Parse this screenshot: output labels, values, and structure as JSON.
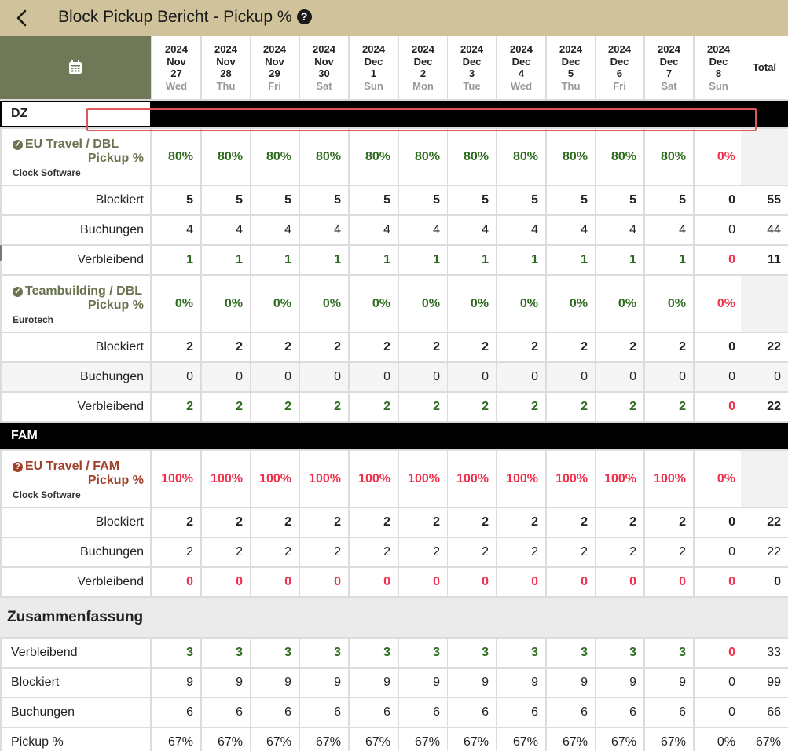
{
  "header": {
    "title": "Block Pickup Bericht - Pickup %",
    "back_icon": "chevron-left-icon",
    "help_icon": "help-circle-icon"
  },
  "columns": [
    {
      "year": "2024",
      "month": "Nov",
      "day": "27",
      "weekday": "Wed"
    },
    {
      "year": "2024",
      "month": "Nov",
      "day": "28",
      "weekday": "Thu"
    },
    {
      "year": "2024",
      "month": "Nov",
      "day": "29",
      "weekday": "Fri"
    },
    {
      "year": "2024",
      "month": "Nov",
      "day": "30",
      "weekday": "Sat"
    },
    {
      "year": "2024",
      "month": "Dec",
      "day": "1",
      "weekday": "Sun"
    },
    {
      "year": "2024",
      "month": "Dec",
      "day": "2",
      "weekday": "Mon"
    },
    {
      "year": "2024",
      "month": "Dec",
      "day": "3",
      "weekday": "Tue"
    },
    {
      "year": "2024",
      "month": "Dec",
      "day": "4",
      "weekday": "Wed"
    },
    {
      "year": "2024",
      "month": "Dec",
      "day": "5",
      "weekday": "Thu"
    },
    {
      "year": "2024",
      "month": "Dec",
      "day": "6",
      "weekday": "Fri"
    },
    {
      "year": "2024",
      "month": "Dec",
      "day": "7",
      "weekday": "Sat"
    },
    {
      "year": "2024",
      "month": "Dec",
      "day": "8",
      "weekday": "Sun"
    }
  ],
  "total_label": "Total",
  "calendar_icon": "calendar-icon",
  "sections": [
    {
      "name": "DZ",
      "groups": [
        {
          "name": "EU Travel / DBL",
          "company": "Clock Software",
          "status": "confirmed",
          "color": "#6b7450",
          "pickup_label": "Pickup %",
          "pickup": [
            "80%",
            "80%",
            "80%",
            "80%",
            "80%",
            "80%",
            "80%",
            "80%",
            "80%",
            "80%",
            "80%",
            "0%"
          ],
          "rows": [
            {
              "label": "Blockiert",
              "values": [
                "5",
                "5",
                "5",
                "5",
                "5",
                "5",
                "5",
                "5",
                "5",
                "5",
                "5",
                "0"
              ],
              "total": "55"
            },
            {
              "label": "Buchungen",
              "values": [
                "4",
                "4",
                "4",
                "4",
                "4",
                "4",
                "4",
                "4",
                "4",
                "4",
                "4",
                "0"
              ],
              "total": "44"
            },
            {
              "label": "Verbleibend",
              "values": [
                "1",
                "1",
                "1",
                "1",
                "1",
                "1",
                "1",
                "1",
                "1",
                "1",
                "1",
                "0"
              ],
              "total": "11"
            }
          ]
        },
        {
          "name": "Teambuilding / DBL",
          "company": "Eurotech",
          "status": "confirmed",
          "color": "#6b7450",
          "pickup_label": "Pickup %",
          "pickup": [
            "0%",
            "0%",
            "0%",
            "0%",
            "0%",
            "0%",
            "0%",
            "0%",
            "0%",
            "0%",
            "0%",
            "0%"
          ],
          "rows": [
            {
              "label": "Blockiert",
              "values": [
                "2",
                "2",
                "2",
                "2",
                "2",
                "2",
                "2",
                "2",
                "2",
                "2",
                "2",
                "0"
              ],
              "total": "22"
            },
            {
              "label": "Buchungen",
              "values": [
                "0",
                "0",
                "0",
                "0",
                "0",
                "0",
                "0",
                "0",
                "0",
                "0",
                "0",
                "0"
              ],
              "total": "0"
            },
            {
              "label": "Verbleibend",
              "values": [
                "2",
                "2",
                "2",
                "2",
                "2",
                "2",
                "2",
                "2",
                "2",
                "2",
                "2",
                "0"
              ],
              "total": "22"
            }
          ]
        }
      ]
    },
    {
      "name": "FAM",
      "groups": [
        {
          "name": "EU Travel / FAM",
          "company": "Clock Software",
          "status": "tentative",
          "color": "#a0412a",
          "pickup_label": "Pickup %",
          "pickup": [
            "100%",
            "100%",
            "100%",
            "100%",
            "100%",
            "100%",
            "100%",
            "100%",
            "100%",
            "100%",
            "100%",
            "0%"
          ],
          "rows": [
            {
              "label": "Blockiert",
              "values": [
                "2",
                "2",
                "2",
                "2",
                "2",
                "2",
                "2",
                "2",
                "2",
                "2",
                "2",
                "0"
              ],
              "total": "22"
            },
            {
              "label": "Buchungen",
              "values": [
                "2",
                "2",
                "2",
                "2",
                "2",
                "2",
                "2",
                "2",
                "2",
                "2",
                "2",
                "0"
              ],
              "total": "22"
            },
            {
              "label": "Verbleibend",
              "values": [
                "0",
                "0",
                "0",
                "0",
                "0",
                "0",
                "0",
                "0",
                "0",
                "0",
                "0",
                "0"
              ],
              "total": "0"
            }
          ]
        }
      ]
    }
  ],
  "summary": {
    "title": "Zusammenfassung",
    "rows": [
      {
        "label": "Verbleibend",
        "values": [
          "3",
          "3",
          "3",
          "3",
          "3",
          "3",
          "3",
          "3",
          "3",
          "3",
          "3",
          "0"
        ],
        "total": "33"
      },
      {
        "label": "Blockiert",
        "values": [
          "9",
          "9",
          "9",
          "9",
          "9",
          "9",
          "9",
          "9",
          "9",
          "9",
          "9",
          "0"
        ],
        "total": "99"
      },
      {
        "label": "Buchungen",
        "values": [
          "6",
          "6",
          "6",
          "6",
          "6",
          "6",
          "6",
          "6",
          "6",
          "6",
          "6",
          "0"
        ],
        "total": "66"
      },
      {
        "label": "Pickup %",
        "values": [
          "67%",
          "67%",
          "67%",
          "67%",
          "67%",
          "67%",
          "67%",
          "67%",
          "67%",
          "67%",
          "67%",
          "0%"
        ],
        "total": "67%"
      }
    ]
  },
  "colors": {
    "green": "#2e6b1f",
    "red": "#f0304a",
    "header_bg": "#d0c29a",
    "calendar_bg": "#6f7857"
  }
}
